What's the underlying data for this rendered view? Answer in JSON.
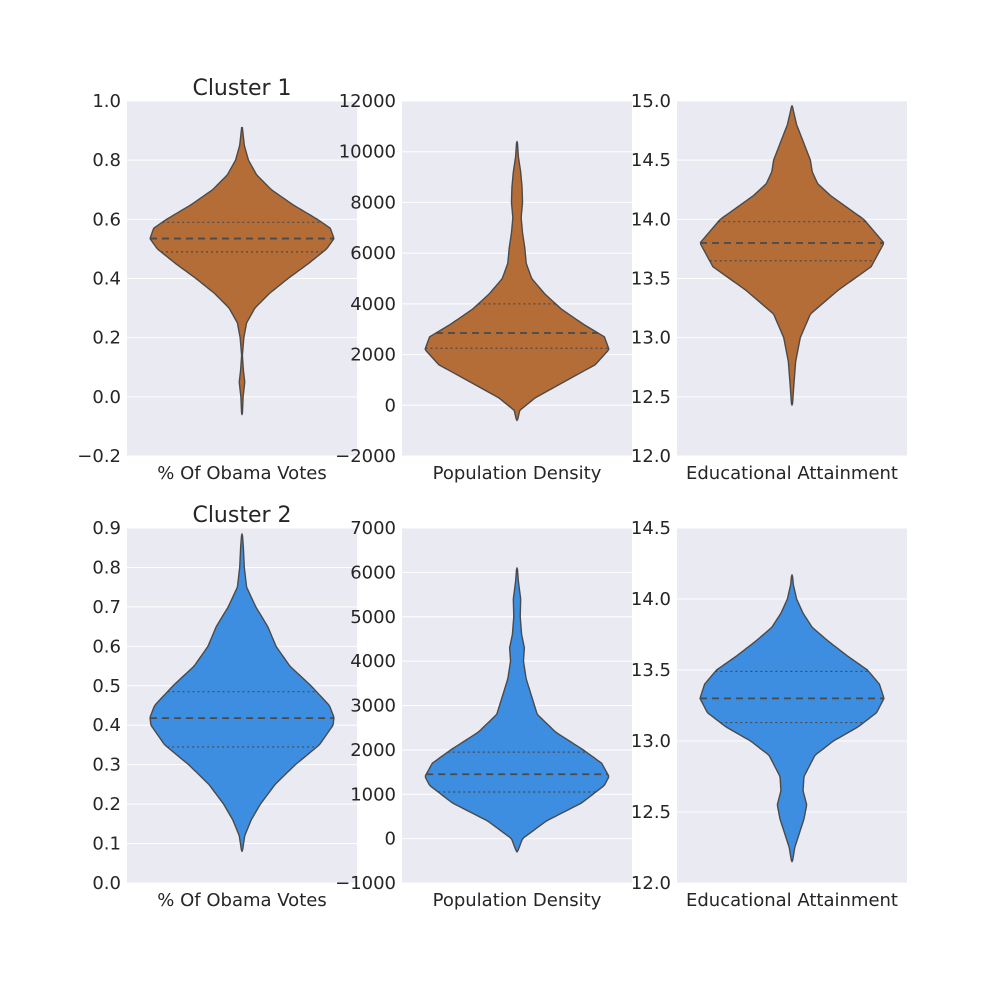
{
  "colors": {
    "background": "#eaeaf2",
    "grid": "#ffffff",
    "outline": "#4a4a4a",
    "cluster_1": "#b56d38",
    "cluster_2": "#3d8ee0"
  },
  "chart_data": [
    {
      "type": "violin",
      "title": "Cluster 1",
      "xlabel": "% Of Obama Votes",
      "color": "#b56d38",
      "ylim": [
        -0.2,
        1.0
      ],
      "yticks": [
        -0.2,
        0.0,
        0.2,
        0.4,
        0.6,
        0.8,
        1.0
      ],
      "ytick_labels": [
        "−0.2",
        "0.0",
        "0.2",
        "0.4",
        "0.6",
        "0.8",
        "1.0"
      ],
      "grid": true,
      "quartiles": {
        "q1": 0.49,
        "median": 0.535,
        "q3": 0.59
      },
      "range": [
        -0.06,
        0.91
      ],
      "density": [
        [
          -0.06,
          0.004
        ],
        [
          0.0,
          0.012
        ],
        [
          0.05,
          0.03
        ],
        [
          0.09,
          0.015
        ],
        [
          0.14,
          0.004
        ],
        [
          0.2,
          0.02
        ],
        [
          0.25,
          0.05
        ],
        [
          0.3,
          0.14
        ],
        [
          0.35,
          0.3
        ],
        [
          0.4,
          0.5
        ],
        [
          0.45,
          0.72
        ],
        [
          0.5,
          0.92
        ],
        [
          0.535,
          1.0
        ],
        [
          0.57,
          0.96
        ],
        [
          0.6,
          0.82
        ],
        [
          0.65,
          0.55
        ],
        [
          0.7,
          0.32
        ],
        [
          0.75,
          0.16
        ],
        [
          0.8,
          0.07
        ],
        [
          0.85,
          0.025
        ],
        [
          0.91,
          0.004
        ]
      ]
    },
    {
      "type": "violin",
      "title": "",
      "xlabel": "Population Density",
      "color": "#b56d38",
      "ylim": [
        -2000,
        12000
      ],
      "yticks": [
        -2000,
        0,
        2000,
        4000,
        6000,
        8000,
        10000,
        12000
      ],
      "ytick_labels": [
        "−2000",
        "0",
        "2000",
        "4000",
        "6000",
        "8000",
        "10000",
        "12000"
      ],
      "grid": true,
      "quartiles": {
        "q1": 2250,
        "median": 2850,
        "q3": 4000
      },
      "range": [
        -600,
        10400
      ],
      "density": [
        [
          -600,
          0.005
        ],
        [
          -200,
          0.03
        ],
        [
          300,
          0.2
        ],
        [
          1000,
          0.55
        ],
        [
          1600,
          0.85
        ],
        [
          2200,
          1.0
        ],
        [
          2700,
          0.95
        ],
        [
          3200,
          0.72
        ],
        [
          3800,
          0.48
        ],
        [
          4400,
          0.3
        ],
        [
          5000,
          0.16
        ],
        [
          5600,
          0.1
        ],
        [
          6200,
          0.085
        ],
        [
          6800,
          0.06
        ],
        [
          7400,
          0.045
        ],
        [
          8000,
          0.06
        ],
        [
          8600,
          0.055
        ],
        [
          9200,
          0.04
        ],
        [
          9800,
          0.015
        ],
        [
          10400,
          0.004
        ]
      ]
    },
    {
      "type": "violin",
      "title": "",
      "xlabel": "Educational Attainment",
      "color": "#b56d38",
      "ylim": [
        12.0,
        15.0
      ],
      "yticks": [
        12.0,
        12.5,
        13.0,
        13.5,
        14.0,
        14.5,
        15.0
      ],
      "ytick_labels": [
        "12.0",
        "12.5",
        "13.0",
        "13.5",
        "14.0",
        "14.5",
        "15.0"
      ],
      "grid": true,
      "quartiles": {
        "q1": 13.65,
        "median": 13.8,
        "q3": 13.98
      },
      "range": [
        12.43,
        14.96
      ],
      "density": [
        [
          12.43,
          0.005
        ],
        [
          12.6,
          0.02
        ],
        [
          12.8,
          0.04
        ],
        [
          13.0,
          0.09
        ],
        [
          13.2,
          0.2
        ],
        [
          13.4,
          0.5
        ],
        [
          13.6,
          0.86
        ],
        [
          13.8,
          1.0
        ],
        [
          14.0,
          0.78
        ],
        [
          14.2,
          0.42
        ],
        [
          14.3,
          0.28
        ],
        [
          14.4,
          0.22
        ],
        [
          14.5,
          0.2
        ],
        [
          14.6,
          0.15
        ],
        [
          14.7,
          0.1
        ],
        [
          14.8,
          0.05
        ],
        [
          14.9,
          0.02
        ],
        [
          14.96,
          0.004
        ]
      ]
    },
    {
      "type": "violin",
      "title": "Cluster 2",
      "xlabel": "% Of Obama Votes",
      "color": "#3d8ee0",
      "ylim": [
        0.0,
        0.9
      ],
      "yticks": [
        0.0,
        0.1,
        0.2,
        0.3,
        0.4,
        0.5,
        0.6,
        0.7,
        0.8,
        0.9
      ],
      "ytick_labels": [
        "0.0",
        "0.1",
        "0.2",
        "0.3",
        "0.4",
        "0.5",
        "0.6",
        "0.7",
        "0.8",
        "0.9"
      ],
      "grid": true,
      "quartiles": {
        "q1": 0.345,
        "median": 0.418,
        "q3": 0.485
      },
      "range": [
        0.08,
        0.885
      ],
      "density": [
        [
          0.08,
          0.004
        ],
        [
          0.12,
          0.03
        ],
        [
          0.16,
          0.1
        ],
        [
          0.2,
          0.2
        ],
        [
          0.25,
          0.36
        ],
        [
          0.3,
          0.58
        ],
        [
          0.35,
          0.84
        ],
        [
          0.4,
          0.99
        ],
        [
          0.42,
          1.0
        ],
        [
          0.45,
          0.95
        ],
        [
          0.5,
          0.75
        ],
        [
          0.55,
          0.52
        ],
        [
          0.6,
          0.37
        ],
        [
          0.65,
          0.28
        ],
        [
          0.7,
          0.15
        ],
        [
          0.75,
          0.05
        ],
        [
          0.8,
          0.025
        ],
        [
          0.85,
          0.015
        ],
        [
          0.885,
          0.004
        ]
      ]
    },
    {
      "type": "violin",
      "title": "",
      "xlabel": "Population Density",
      "color": "#3d8ee0",
      "ylim": [
        -1000,
        7000
      ],
      "yticks": [
        -1000,
        0,
        1000,
        2000,
        3000,
        4000,
        5000,
        6000,
        7000
      ],
      "ytick_labels": [
        "−1000",
        "0",
        "1000",
        "2000",
        "3000",
        "4000",
        "5000",
        "6000",
        "7000"
      ],
      "grid": true,
      "quartiles": {
        "q1": 1050,
        "median": 1450,
        "q3": 1950
      },
      "range": [
        -300,
        6100
      ],
      "density": [
        [
          -300,
          0.005
        ],
        [
          0,
          0.06
        ],
        [
          400,
          0.32
        ],
        [
          800,
          0.7
        ],
        [
          1200,
          0.95
        ],
        [
          1400,
          1.0
        ],
        [
          1700,
          0.92
        ],
        [
          2000,
          0.72
        ],
        [
          2400,
          0.42
        ],
        [
          2800,
          0.22
        ],
        [
          3200,
          0.16
        ],
        [
          3600,
          0.1
        ],
        [
          4000,
          0.07
        ],
        [
          4300,
          0.08
        ],
        [
          4600,
          0.05
        ],
        [
          5000,
          0.035
        ],
        [
          5400,
          0.04
        ],
        [
          5800,
          0.015
        ],
        [
          6100,
          0.004
        ]
      ]
    },
    {
      "type": "violin",
      "title": "",
      "xlabel": "Educational Attainment",
      "color": "#3d8ee0",
      "ylim": [
        12.0,
        14.5
      ],
      "yticks": [
        12.0,
        12.5,
        13.0,
        13.5,
        14.0,
        14.5
      ],
      "ytick_labels": [
        "12.0",
        "12.5",
        "13.0",
        "13.5",
        "14.0",
        "14.5"
      ],
      "grid": true,
      "quartiles": {
        "q1": 13.13,
        "median": 13.3,
        "q3": 13.49
      },
      "range": [
        12.15,
        14.17
      ],
      "density": [
        [
          12.15,
          0.005
        ],
        [
          12.25,
          0.03
        ],
        [
          12.35,
          0.08
        ],
        [
          12.45,
          0.13
        ],
        [
          12.55,
          0.16
        ],
        [
          12.65,
          0.12
        ],
        [
          12.75,
          0.13
        ],
        [
          12.9,
          0.25
        ],
        [
          13.0,
          0.45
        ],
        [
          13.1,
          0.72
        ],
        [
          13.2,
          0.92
        ],
        [
          13.3,
          1.0
        ],
        [
          13.4,
          0.95
        ],
        [
          13.5,
          0.82
        ],
        [
          13.6,
          0.6
        ],
        [
          13.7,
          0.4
        ],
        [
          13.8,
          0.22
        ],
        [
          13.9,
          0.12
        ],
        [
          14.0,
          0.05
        ],
        [
          14.1,
          0.015
        ],
        [
          14.17,
          0.004
        ]
      ]
    }
  ]
}
